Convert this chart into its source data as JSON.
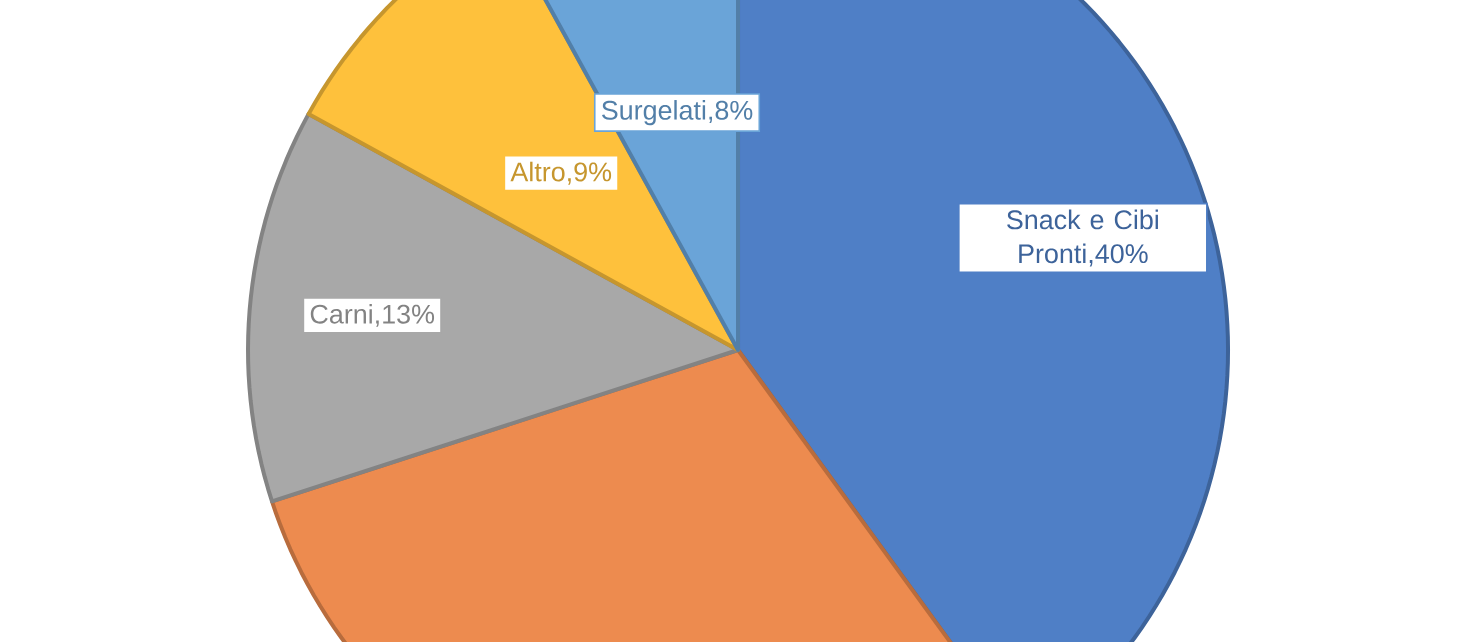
{
  "chart_data": {
    "type": "pie",
    "categories": [
      "Snack e Cibi Pronti",
      null,
      "Carni",
      "Altro",
      "Surgelati"
    ],
    "values": [
      40,
      30,
      13,
      9,
      8
    ],
    "value_labels": [
      ",40%",
      null,
      ",13%",
      ",9%",
      ",8%"
    ],
    "colors": [
      "#4f7fc6",
      "#ed8b4f",
      "#a8a8a8",
      "#fec13c",
      "#6aa4d8"
    ],
    "legend": false
  }
}
